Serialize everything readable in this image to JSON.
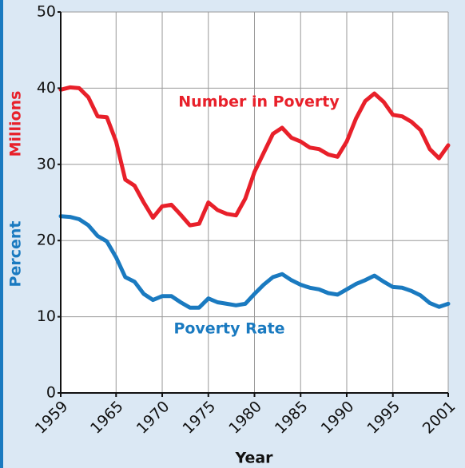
{
  "chart_data": {
    "type": "line",
    "x_label": "Year",
    "y_label": "Millions",
    "y2_label": "Percent",
    "annotations": [
      "Number in Poverty",
      "Poverty Rate"
    ],
    "x": [
      1959,
      1960,
      1961,
      1962,
      1963,
      1964,
      1965,
      1966,
      1967,
      1968,
      1969,
      1970,
      1971,
      1972,
      1973,
      1974,
      1975,
      1976,
      1977,
      1978,
      1979,
      1980,
      1981,
      1982,
      1983,
      1984,
      1985,
      1986,
      1987,
      1988,
      1989,
      1990,
      1991,
      1992,
      1993,
      1994,
      1995,
      1996,
      1997,
      1998,
      1999,
      2000,
      2001
    ],
    "series": [
      {
        "name": "Number in Poverty",
        "color": "#e8202a",
        "values": [
          39.8,
          40.1,
          40.0,
          38.8,
          36.3,
          36.2,
          33.0,
          28.0,
          27.2,
          25.0,
          23.0,
          24.5,
          24.7,
          23.4,
          22.0,
          22.2,
          25.0,
          24.0,
          23.5,
          23.3,
          25.5,
          29.0,
          31.5,
          34.0,
          34.8,
          33.5,
          33.0,
          32.2,
          32.0,
          31.3,
          31.0,
          33.0,
          36.0,
          38.3,
          39.3,
          38.2,
          36.5,
          36.3,
          35.6,
          34.5,
          32.0,
          30.8,
          32.5
        ]
      },
      {
        "name": "Poverty Rate",
        "color": "#1a7ac0",
        "values": [
          23.2,
          23.1,
          22.8,
          22.0,
          20.6,
          19.9,
          17.8,
          15.2,
          14.6,
          13.0,
          12.2,
          12.7,
          12.7,
          11.9,
          11.2,
          11.2,
          12.4,
          11.9,
          11.7,
          11.5,
          11.7,
          13.0,
          14.2,
          15.2,
          15.6,
          14.8,
          14.2,
          13.8,
          13.6,
          13.1,
          12.9,
          13.6,
          14.3,
          14.8,
          15.4,
          14.6,
          13.9,
          13.8,
          13.4,
          12.8,
          11.8,
          11.3,
          11.7
        ]
      }
    ],
    "xlim": [
      1959,
      2001
    ],
    "xticks": [
      1959,
      1965,
      1970,
      1975,
      1980,
      1985,
      1990,
      1995,
      2001
    ],
    "ylim": [
      0,
      50
    ],
    "yticks": [
      0,
      10,
      20,
      30,
      40,
      50
    ],
    "grid": true
  }
}
